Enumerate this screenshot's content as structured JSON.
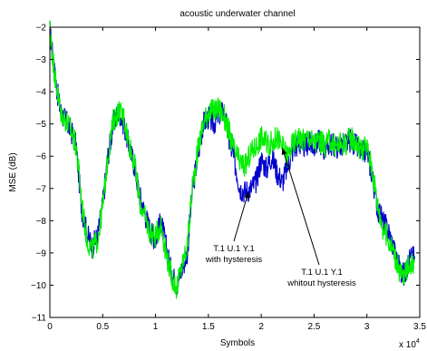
{
  "chart_data": {
    "type": "line",
    "title": "acoustic underwater channel",
    "xlabel": "Symbols",
    "ylabel": "MSE (dB)",
    "x_multiplier_label": "x 10",
    "x_multiplier_exponent": "4",
    "xlim": [
      0,
      3.5
    ],
    "ylim": [
      -11,
      -2
    ],
    "xticks": [
      0,
      0.5,
      1,
      1.5,
      2,
      2.5,
      3,
      3.5
    ],
    "xtick_labels": [
      "0",
      "0.5",
      "1",
      "1.5",
      "2",
      "2.5",
      "3",
      "3.5"
    ],
    "yticks": [
      -11,
      -10,
      -9,
      -8,
      -7,
      -6,
      -5,
      -4,
      -3,
      -2
    ],
    "ytick_labels": [
      "−11",
      "−10",
      "−9",
      "−8",
      "−7",
      "−6",
      "−5",
      "−4",
      "−3",
      "−2"
    ],
    "grid": false,
    "series": [
      {
        "color": "#0000cc",
        "x": [
          0,
          0.03,
          0.06,
          0.1,
          0.15,
          0.2,
          0.25,
          0.3,
          0.35,
          0.4,
          0.45,
          0.5,
          0.55,
          0.6,
          0.65,
          0.7,
          0.75,
          0.8,
          0.85,
          0.9,
          0.95,
          1.0,
          1.05,
          1.1,
          1.15,
          1.2,
          1.25,
          1.3,
          1.35,
          1.4,
          1.45,
          1.5,
          1.55,
          1.6,
          1.65,
          1.7,
          1.75,
          1.8,
          1.85,
          1.9,
          1.95,
          2.0,
          2.05,
          2.1,
          2.15,
          2.2,
          2.25,
          2.3,
          2.35,
          2.4,
          2.45,
          2.5,
          2.55,
          2.6,
          2.65,
          2.7,
          2.75,
          2.8,
          2.85,
          2.9,
          2.95,
          3.0,
          3.05,
          3.1,
          3.15,
          3.2,
          3.25,
          3.3,
          3.35,
          3.4,
          3.45
        ],
        "y": [
          -2.1,
          -3.0,
          -3.8,
          -4.6,
          -4.9,
          -5.2,
          -5.7,
          -7.6,
          -8.4,
          -8.8,
          -8.5,
          -7.5,
          -6.0,
          -5.0,
          -4.6,
          -5.0,
          -5.7,
          -6.3,
          -7.2,
          -7.8,
          -8.3,
          -8.6,
          -8.0,
          -8.8,
          -9.6,
          -10.0,
          -9.5,
          -9.0,
          -7.0,
          -6.0,
          -5.0,
          -4.8,
          -5.0,
          -4.7,
          -4.6,
          -5.6,
          -6.2,
          -7.0,
          -7.1,
          -7.0,
          -6.8,
          -6.1,
          -6.4,
          -6.0,
          -6.5,
          -6.8,
          -6.3,
          -5.8,
          -5.6,
          -5.7,
          -5.6,
          -5.7,
          -5.5,
          -5.8,
          -5.6,
          -5.7,
          -5.7,
          -5.6,
          -5.5,
          -5.7,
          -5.9,
          -5.8,
          -6.6,
          -7.6,
          -8.0,
          -8.3,
          -8.8,
          -9.4,
          -9.7,
          -9.2,
          -9.1
        ]
      },
      {
        "color": "#00ee00",
        "x": [
          0,
          0.03,
          0.06,
          0.1,
          0.15,
          0.2,
          0.25,
          0.3,
          0.35,
          0.4,
          0.45,
          0.5,
          0.55,
          0.6,
          0.65,
          0.7,
          0.75,
          0.8,
          0.85,
          0.9,
          0.95,
          1.0,
          1.05,
          1.1,
          1.15,
          1.2,
          1.25,
          1.3,
          1.35,
          1.4,
          1.45,
          1.5,
          1.55,
          1.6,
          1.65,
          1.7,
          1.75,
          1.8,
          1.85,
          1.9,
          1.95,
          2.0,
          2.05,
          2.1,
          2.15,
          2.2,
          2.25,
          2.3,
          2.35,
          2.4,
          2.45,
          2.5,
          2.55,
          2.6,
          2.65,
          2.7,
          2.75,
          2.8,
          2.85,
          2.9,
          2.95,
          3.0,
          3.05,
          3.1,
          3.15,
          3.2,
          3.25,
          3.3,
          3.35,
          3.4,
          3.45
        ],
        "y": [
          -2.1,
          -3.0,
          -3.8,
          -4.6,
          -4.9,
          -5.2,
          -5.7,
          -7.4,
          -8.6,
          -8.9,
          -8.6,
          -7.6,
          -6.0,
          -4.9,
          -4.6,
          -4.8,
          -5.6,
          -6.2,
          -7.4,
          -7.9,
          -8.4,
          -8.5,
          -8.1,
          -9.0,
          -9.7,
          -10.1,
          -9.4,
          -8.8,
          -6.9,
          -5.8,
          -5.0,
          -4.6,
          -4.6,
          -4.5,
          -4.8,
          -5.3,
          -5.9,
          -6.2,
          -6.3,
          -5.9,
          -5.7,
          -5.4,
          -5.6,
          -5.6,
          -5.4,
          -5.7,
          -6.0,
          -5.6,
          -5.4,
          -5.5,
          -5.4,
          -5.6,
          -5.5,
          -5.7,
          -5.5,
          -5.7,
          -5.6,
          -5.6,
          -5.4,
          -5.6,
          -5.8,
          -5.7,
          -6.4,
          -7.5,
          -8.2,
          -8.6,
          -8.9,
          -9.5,
          -9.8,
          -9.3,
          -9.3
        ]
      }
    ],
    "annotations": [
      {
        "lines": [
          "T.1 U.1 Y.1",
          "with hysteresis"
        ],
        "arrow_to": [
          1.88,
          -7.1
        ]
      },
      {
        "lines": [
          "T.1 U.1 Y.1",
          "whitout hysteresis"
        ],
        "arrow_to": [
          2.2,
          -5.75
        ]
      }
    ]
  }
}
